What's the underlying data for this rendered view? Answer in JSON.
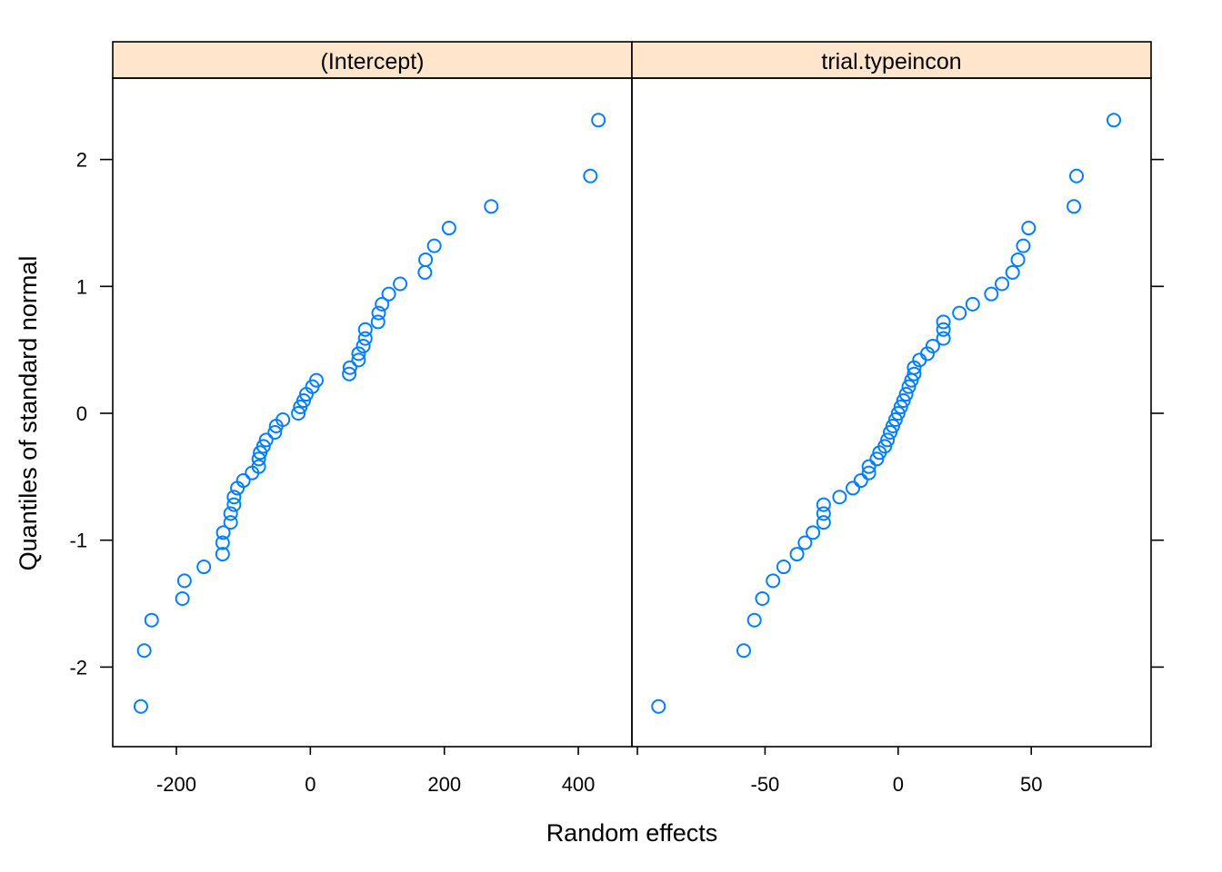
{
  "chart_data": {
    "type": "scatter",
    "xlabel": "Random effects",
    "ylabel": "Quantiles of standard normal",
    "point_color": "#0080ff",
    "strip_color": "#ffe5cc",
    "ylim": [
      -2.6,
      2.6
    ],
    "yticks": [
      -2,
      -1,
      0,
      1,
      2
    ],
    "panels": [
      {
        "title": "(Intercept)",
        "xlim": [
          -295,
          480
        ],
        "xticks": [
          -200,
          0,
          200,
          400
        ],
        "points": [
          [
            -253,
            -2.31
          ],
          [
            -248,
            -1.87
          ],
          [
            -237,
            -1.63
          ],
          [
            -191,
            -1.46
          ],
          [
            -188,
            -1.32
          ],
          [
            -159,
            -1.21
          ],
          [
            -131,
            -1.11
          ],
          [
            -131,
            -1.02
          ],
          [
            -130,
            -0.94
          ],
          [
            -119,
            -0.86
          ],
          [
            -119,
            -0.79
          ],
          [
            -114,
            -0.72
          ],
          [
            -114,
            -0.66
          ],
          [
            -109,
            -0.59
          ],
          [
            -100,
            -0.53
          ],
          [
            -87,
            -0.47
          ],
          [
            -77,
            -0.42
          ],
          [
            -77,
            -0.36
          ],
          [
            -75,
            -0.31
          ],
          [
            -70,
            -0.26
          ],
          [
            -66,
            -0.21
          ],
          [
            -53,
            -0.15
          ],
          [
            -51,
            -0.1
          ],
          [
            -41,
            -0.05
          ],
          [
            -18,
            0.0
          ],
          [
            -15,
            0.05
          ],
          [
            -10,
            0.1
          ],
          [
            -6,
            0.15
          ],
          [
            3,
            0.21
          ],
          [
            9,
            0.26
          ],
          [
            58,
            0.31
          ],
          [
            59,
            0.36
          ],
          [
            72,
            0.42
          ],
          [
            72,
            0.47
          ],
          [
            79,
            0.53
          ],
          [
            82,
            0.59
          ],
          [
            82,
            0.66
          ],
          [
            101,
            0.72
          ],
          [
            102,
            0.79
          ],
          [
            107,
            0.86
          ],
          [
            117,
            0.94
          ],
          [
            134,
            1.02
          ],
          [
            171,
            1.11
          ],
          [
            172,
            1.21
          ],
          [
            185,
            1.32
          ],
          [
            207,
            1.46
          ],
          [
            270,
            1.63
          ],
          [
            418,
            1.87
          ],
          [
            430,
            2.31
          ]
        ]
      },
      {
        "title": "trial.typeincon",
        "xlim": [
          -100,
          95
        ],
        "xticks": [
          -50,
          0,
          50
        ],
        "points": [
          [
            -90,
            -2.31
          ],
          [
            -58,
            -1.87
          ],
          [
            -54,
            -1.63
          ],
          [
            -51,
            -1.46
          ],
          [
            -47,
            -1.32
          ],
          [
            -43,
            -1.21
          ],
          [
            -38,
            -1.11
          ],
          [
            -35,
            -1.02
          ],
          [
            -32,
            -0.94
          ],
          [
            -28,
            -0.86
          ],
          [
            -28,
            -0.79
          ],
          [
            -28,
            -0.72
          ],
          [
            -22,
            -0.66
          ],
          [
            -17,
            -0.59
          ],
          [
            -14,
            -0.53
          ],
          [
            -11,
            -0.47
          ],
          [
            -11,
            -0.42
          ],
          [
            -8,
            -0.36
          ],
          [
            -7,
            -0.31
          ],
          [
            -5,
            -0.26
          ],
          [
            -4,
            -0.21
          ],
          [
            -3,
            -0.15
          ],
          [
            -2,
            -0.1
          ],
          [
            -1,
            -0.05
          ],
          [
            0,
            0.0
          ],
          [
            1,
            0.05
          ],
          [
            2,
            0.1
          ],
          [
            3,
            0.15
          ],
          [
            4,
            0.21
          ],
          [
            5,
            0.26
          ],
          [
            6,
            0.31
          ],
          [
            6,
            0.36
          ],
          [
            8,
            0.42
          ],
          [
            11,
            0.47
          ],
          [
            13,
            0.53
          ],
          [
            17,
            0.59
          ],
          [
            17,
            0.66
          ],
          [
            17,
            0.72
          ],
          [
            23,
            0.79
          ],
          [
            28,
            0.86
          ],
          [
            35,
            0.94
          ],
          [
            39,
            1.02
          ],
          [
            43,
            1.11
          ],
          [
            45,
            1.21
          ],
          [
            47,
            1.32
          ],
          [
            49,
            1.46
          ],
          [
            66,
            1.63
          ],
          [
            67,
            1.87
          ],
          [
            81,
            2.31
          ]
        ]
      }
    ]
  }
}
